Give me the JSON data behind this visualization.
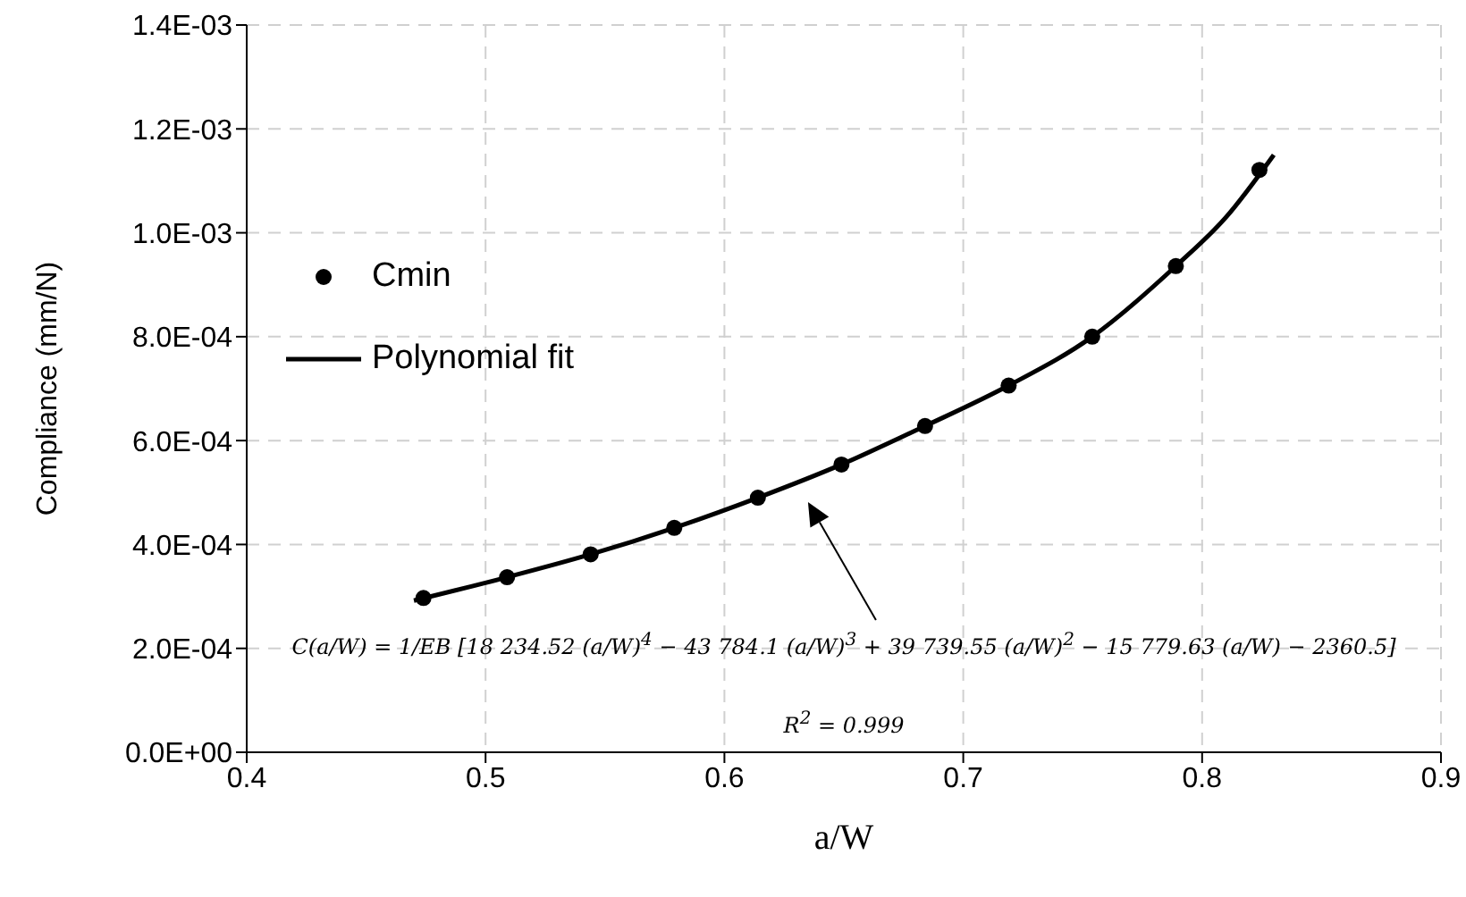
{
  "chart_data": {
    "type": "scatter",
    "xlabel": "a/W",
    "ylabel": "Compliance (mm/N)",
    "series": [
      {
        "name": "Cmin",
        "type": "scatter",
        "color": "#000000",
        "marker": "circle",
        "x": [
          0.474,
          0.509,
          0.544,
          0.579,
          0.614,
          0.649,
          0.684,
          0.719,
          0.754,
          0.789,
          0.824
        ],
        "values": [
          0.000297,
          0.000337,
          0.000381,
          0.000432,
          0.00049,
          0.000554,
          0.000628,
          0.000706,
          0.0008,
          0.000936,
          0.001121
        ]
      },
      {
        "name": "Polynomial fit",
        "type": "line",
        "color": "#000000",
        "marker": "none",
        "line_style": "solid",
        "x": [
          0.47,
          0.509,
          0.544,
          0.579,
          0.614,
          0.649,
          0.684,
          0.719,
          0.754,
          0.789,
          0.81,
          0.83
        ],
        "values": [
          0.000292,
          0.000337,
          0.000381,
          0.000432,
          0.00049,
          0.000554,
          0.000628,
          0.000706,
          0.0008,
          0.000936,
          0.00103,
          0.00115
        ]
      }
    ],
    "xlim": [
      0.4,
      0.9
    ],
    "xticks": [
      0.4,
      0.5,
      0.6,
      0.7,
      0.8,
      0.9
    ],
    "ylim": [
      0,
      0.0014
    ],
    "yticks": [
      {
        "value": 0,
        "label": "0.0E+00"
      },
      {
        "value": 0.0002,
        "label": "2.0E-04"
      },
      {
        "value": 0.0004,
        "label": "4.0E-04"
      },
      {
        "value": 0.0006,
        "label": "6.0E-04"
      },
      {
        "value": 0.0008,
        "label": "8.0E-04"
      },
      {
        "value": 0.001,
        "label": "1.0E-03"
      },
      {
        "value": 0.0012,
        "label": "1.2E-03"
      },
      {
        "value": 0.0014,
        "label": "1.4E-03"
      }
    ],
    "grid": true,
    "legend": "top left",
    "annotations": [
      "C(a/W) = 1/EB [18 234.52 (a/W)$^{4}$ − 43 784.1 (a/W)$^{3}$ + 39 739.55 (a/W)$^{2}$ − 15 779.63 (a/W) − 2360.5]",
      "R$^{2}$ = 0.999"
    ]
  }
}
